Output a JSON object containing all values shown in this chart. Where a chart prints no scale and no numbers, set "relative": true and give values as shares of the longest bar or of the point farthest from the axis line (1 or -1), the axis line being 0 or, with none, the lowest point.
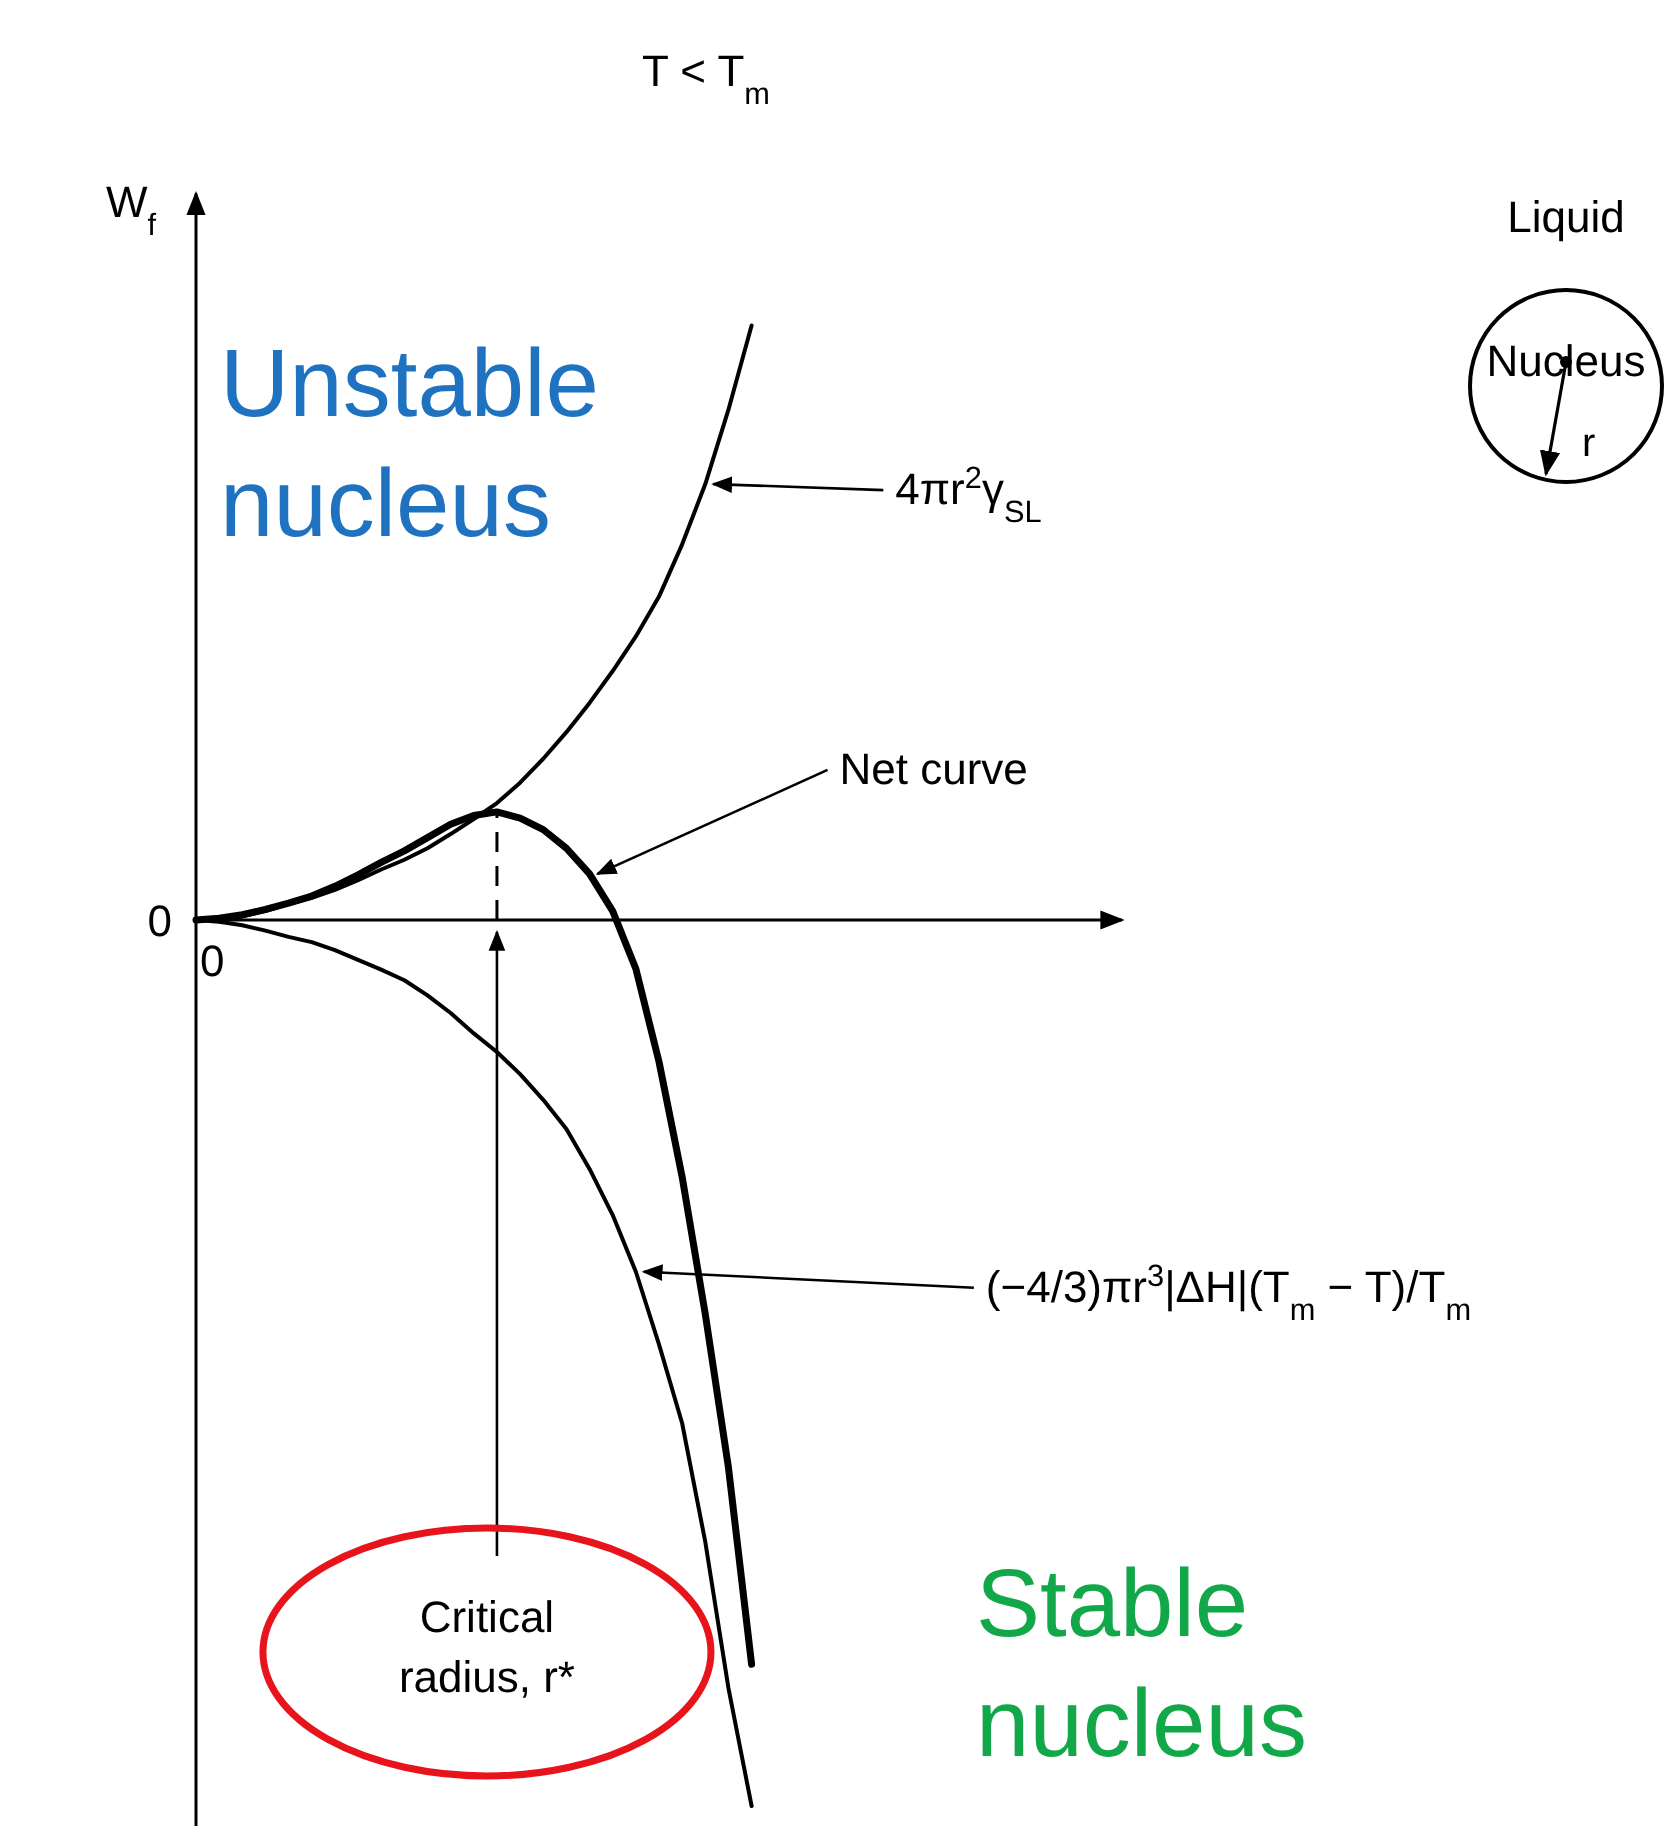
{
  "chart_data": {
    "type": "line",
    "title": "T < T$_{m}$",
    "ylabel": "W$_{f}$",
    "relative": true,
    "marker": "none",
    "line_style": "solid",
    "categories": [
      null,
      null,
      null,
      null,
      null,
      null,
      null,
      null,
      null,
      null,
      null,
      null,
      null,
      null,
      null,
      null,
      null,
      null,
      null,
      null,
      null,
      null,
      null,
      null,
      null
    ],
    "series": [
      {
        "name": "4πr$^{2}$γ$_{SL}$",
        "color": "#000000",
        "values": [
          0,
          0.001,
          0.004,
          0.01,
          0.018,
          0.025,
          0.034,
          0.045,
          0.057,
          0.068,
          0.081,
          0.097,
          0.114,
          0.132,
          0.155,
          0.182,
          0.212,
          0.245,
          0.281,
          0.32,
          0.365,
          0.424,
          0.492,
          0.576,
          0.671
        ]
      },
      {
        "name": "Net curve",
        "color": "#000000",
        "values": [
          0,
          0.002,
          0.006,
          0.012,
          0.019,
          0.027,
          0.038,
          0.051,
          0.065,
          0.078,
          0.093,
          0.108,
          0.118,
          0.122,
          0.115,
          0.102,
          0.081,
          0.052,
          0.01,
          -0.055,
          -0.16,
          -0.29,
          -0.445,
          -0.618,
          -0.84
        ]
      },
      {
        "name": "(−4/3)πr$^{3}$|ΔH|(T$_{m}$ − T)/T$_{m}$",
        "color": "#000000",
        "values": [
          0,
          -0.002,
          -0.006,
          -0.012,
          -0.019,
          -0.025,
          -0.034,
          -0.045,
          -0.056,
          -0.068,
          -0.085,
          -0.105,
          -0.128,
          -0.149,
          -0.174,
          -0.203,
          -0.236,
          -0.281,
          -0.333,
          -0.397,
          -0.479,
          -0.568,
          -0.702,
          -0.867,
          -1
        ]
      }
    ],
    "annotations": [
      "0",
      "0",
      "Unstable nucleus",
      "Stable nucleus",
      "Liquid",
      "Nucleus",
      "r",
      "Critical radius, r*"
    ]
  }
}
